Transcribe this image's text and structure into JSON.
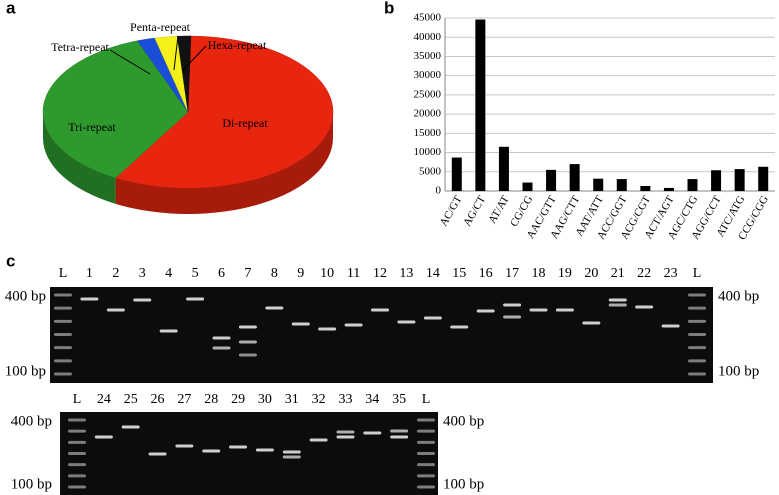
{
  "chart_data": [
    {
      "type": "pie",
      "panel_label": "a",
      "categories": [
        "Di-repeat",
        "Tri-repeat",
        "Tetra-repeat",
        "Penta-repeat",
        "Hexa-repeat"
      ],
      "values": [
        58,
        36,
        2,
        2.5,
        1.5
      ],
      "colors": [
        "#e8250f",
        "#2e9a2e",
        "#1a4ed8",
        "#f5ef1a",
        "#111111"
      ]
    },
    {
      "type": "bar",
      "panel_label": "b",
      "categories": [
        "AC/GT",
        "AG/CT",
        "AT/AT",
        "CG/CG",
        "AAC/GTT",
        "AAG/CTT",
        "AAT/ATT",
        "ACC/GGT",
        "ACG/CGT",
        "ACT/AGT",
        "AGC/CTG",
        "AGG/CCT",
        "ATC/ATG",
        "CCG/CGG"
      ],
      "values": [
        8700,
        44600,
        11500,
        2200,
        5500,
        7000,
        3200,
        3100,
        1300,
        800,
        3100,
        5400,
        5700,
        6300
      ],
      "color": "#000000",
      "ylim": [
        0,
        45000
      ],
      "yticks": [
        0,
        5000,
        10000,
        15000,
        20000,
        25000,
        30000,
        35000,
        40000,
        45000
      ],
      "grid": true
    }
  ],
  "gel": {
    "panel_label": "c",
    "top": {
      "lanes": [
        "L",
        "1",
        "2",
        "3",
        "4",
        "5",
        "6",
        "7",
        "8",
        "9",
        "10",
        "11",
        "12",
        "13",
        "14",
        "15",
        "16",
        "17",
        "18",
        "19",
        "20",
        "21",
        "22",
        "23",
        "L"
      ],
      "size_labels_left": [
        "400 bp",
        "100 bp"
      ],
      "size_labels_right": [
        "400 bp",
        "100 bp"
      ]
    },
    "bottom": {
      "lanes": [
        "L",
        "24",
        "25",
        "26",
        "27",
        "28",
        "29",
        "30",
        "31",
        "32",
        "33",
        "34",
        "35",
        "L"
      ],
      "size_labels_left": [
        "400 bp",
        "100 bp"
      ],
      "size_labels_right": [
        "400 bp",
        "100 bp"
      ]
    }
  }
}
